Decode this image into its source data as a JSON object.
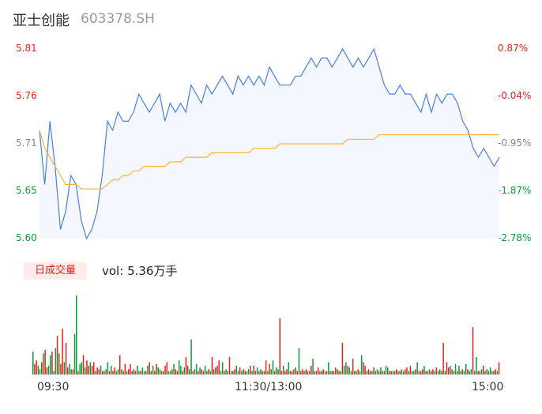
{
  "header": {
    "name": "亚士创能",
    "code": "603378.SH"
  },
  "volume_tag": "日成交量",
  "volume_label": "vol:",
  "volume_value": "5.36万手",
  "colors": {
    "up": "#e2231a",
    "down": "#0b9b3c",
    "flat": "#888888",
    "price": "#4a7fe0",
    "avg": "#f5b731",
    "fill": "#f4f7fd"
  },
  "chart_data": {
    "type": "line",
    "y_left_ticks": [
      "5.81",
      "5.76",
      "5.71",
      "5.65",
      "5.60"
    ],
    "y_right_ticks": [
      "0.87%",
      "-0.04%",
      "-0.95%",
      "-1.87%",
      "-2.78%"
    ],
    "x_ticks": [
      "09:30",
      "11:30/13:00",
      "15:00"
    ],
    "ylim": [
      5.6,
      5.81
    ],
    "prev_close": 5.76,
    "price": [
      5.72,
      5.66,
      5.73,
      5.68,
      5.61,
      5.63,
      5.67,
      5.66,
      5.62,
      5.6,
      5.61,
      5.63,
      5.67,
      5.73,
      5.72,
      5.74,
      5.73,
      5.73,
      5.74,
      5.76,
      5.75,
      5.74,
      5.75,
      5.76,
      5.73,
      5.75,
      5.74,
      5.75,
      5.74,
      5.77,
      5.76,
      5.75,
      5.77,
      5.76,
      5.77,
      5.78,
      5.77,
      5.76,
      5.78,
      5.77,
      5.78,
      5.77,
      5.78,
      5.77,
      5.79,
      5.78,
      5.77,
      5.77,
      5.77,
      5.78,
      5.78,
      5.79,
      5.8,
      5.79,
      5.8,
      5.8,
      5.79,
      5.8,
      5.81,
      5.8,
      5.79,
      5.8,
      5.79,
      5.8,
      5.81,
      5.79,
      5.77,
      5.76,
      5.76,
      5.77,
      5.76,
      5.76,
      5.75,
      5.74,
      5.76,
      5.74,
      5.76,
      5.75,
      5.76,
      5.76,
      5.75,
      5.73,
      5.72,
      5.7,
      5.69,
      5.7,
      5.69,
      5.68,
      5.69
    ],
    "avg": [
      5.72,
      5.7,
      5.69,
      5.68,
      5.67,
      5.66,
      5.66,
      5.66,
      5.655,
      5.655,
      5.655,
      5.655,
      5.655,
      5.66,
      5.665,
      5.665,
      5.67,
      5.67,
      5.675,
      5.675,
      5.68,
      5.68,
      5.68,
      5.68,
      5.68,
      5.685,
      5.685,
      5.685,
      5.69,
      5.69,
      5.69,
      5.69,
      5.69,
      5.695,
      5.695,
      5.695,
      5.695,
      5.695,
      5.695,
      5.695,
      5.695,
      5.7,
      5.7,
      5.7,
      5.7,
      5.7,
      5.705,
      5.705,
      5.705,
      5.705,
      5.705,
      5.705,
      5.705,
      5.705,
      5.705,
      5.705,
      5.705,
      5.705,
      5.705,
      5.71,
      5.71,
      5.71,
      5.71,
      5.71,
      5.71,
      5.715,
      5.715,
      5.715,
      5.715,
      5.715,
      5.715,
      5.715,
      5.715,
      5.715,
      5.715,
      5.715,
      5.715,
      5.715,
      5.715,
      5.715,
      5.715,
      5.715,
      5.715,
      5.715,
      5.715,
      5.715,
      5.715,
      5.715,
      5.715
    ],
    "volume": [
      26,
      12,
      16,
      10,
      6,
      14,
      24,
      28,
      8,
      10,
      22,
      26,
      4,
      30,
      44,
      24,
      12,
      52,
      14,
      36,
      8,
      12,
      6,
      6,
      46,
      90,
      4,
      12,
      14,
      22,
      8,
      16,
      10,
      14,
      10,
      14,
      4,
      8,
      6,
      10,
      4,
      4,
      6,
      14,
      4,
      10,
      4,
      8,
      4,
      6,
      22,
      6,
      4,
      12,
      4,
      6,
      12,
      4,
      6,
      4,
      10,
      4,
      4,
      8,
      4,
      4,
      10,
      14,
      4,
      10,
      4,
      12,
      8,
      6,
      4,
      4,
      10,
      14,
      4,
      4,
      6,
      12,
      6,
      4,
      16,
      10,
      4,
      8,
      20,
      10,
      6,
      40,
      4,
      6,
      12,
      4,
      8,
      6,
      4,
      10,
      4,
      6,
      4,
      20,
      6,
      8,
      10,
      16,
      4,
      14,
      4,
      6,
      4,
      20,
      4,
      4,
      6,
      10,
      4,
      8,
      4,
      6,
      4,
      4,
      6,
      10,
      4,
      10,
      4,
      8,
      4,
      6,
      4,
      4,
      16,
      4,
      12,
      6,
      16,
      4,
      8,
      6,
      64,
      4,
      10,
      4,
      6,
      14,
      4,
      4,
      6,
      8,
      4,
      30,
      4,
      6,
      4,
      6,
      4,
      4,
      10,
      18,
      4,
      4,
      8,
      4,
      4,
      6,
      4,
      4,
      14,
      4,
      4,
      4,
      8,
      6,
      4,
      4,
      36,
      10,
      14,
      10,
      8,
      4,
      18,
      4,
      4,
      6,
      4,
      22,
      14,
      10,
      4,
      6,
      4,
      4,
      8,
      4,
      6,
      4,
      8,
      4,
      4,
      10,
      8,
      4,
      4,
      4,
      4,
      6,
      4,
      4,
      6,
      4,
      6,
      8,
      4,
      10,
      4,
      4,
      6,
      14,
      4,
      4,
      6,
      10,
      4,
      4,
      6,
      4,
      6,
      4,
      8,
      4,
      6,
      4,
      36,
      4,
      14,
      8,
      10,
      6,
      4,
      12,
      4,
      10,
      4,
      6,
      4,
      12,
      6,
      4,
      6,
      54,
      4,
      20,
      4,
      4,
      6,
      10,
      4,
      6,
      4,
      8,
      4,
      4,
      6,
      4,
      14
    ]
  }
}
